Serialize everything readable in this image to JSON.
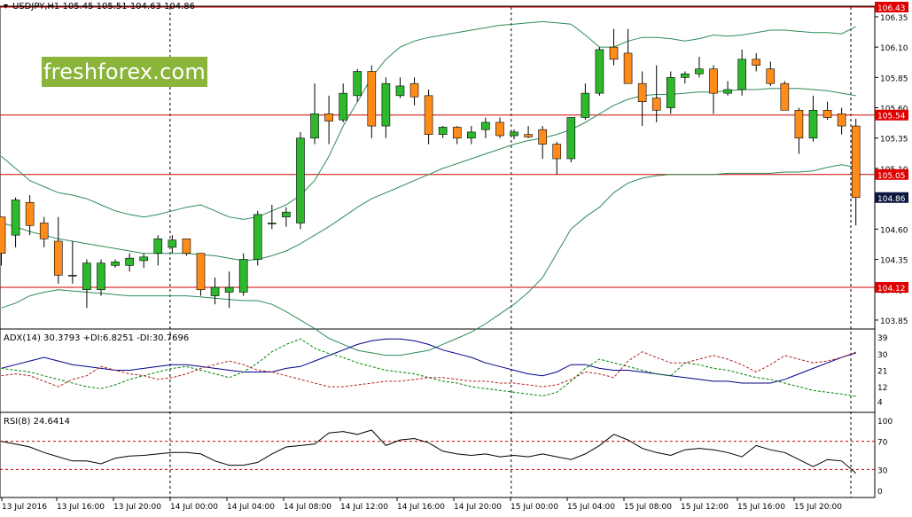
{
  "chart_data": [
    {
      "type": "candlestick",
      "title": "USDJPY,H1  105.45 105.51 104.63 104.86",
      "ylim": [
        103.75,
        106.45
      ],
      "y_ticks": [
        "106.35",
        "106.10",
        "105.85",
        "105.60",
        "105.35",
        "105.10",
        "104.86",
        "104.60",
        "104.35",
        "104.10",
        "103.85"
      ],
      "x_labels": [
        "13 Jul 2016",
        "13 Jul 16:00",
        "13 Jul 20:00",
        "14 Jul 00:00",
        "14 Jul 04:00",
        "14 Jul 08:00",
        "14 Jul 12:00",
        "14 Jul 16:00",
        "14 Jul 20:00",
        "15 Jul 00:00",
        "15 Jul 04:00",
        "15 Jul 08:00",
        "15 Jul 12:00",
        "15 Jul 16:00",
        "15 Jul 20:00"
      ],
      "day_separators": [
        "14 Jul 00:00",
        "15 Jul 00:00"
      ],
      "horizontal_levels": [
        {
          "label": "106.43",
          "value": 106.43
        },
        {
          "label": "105.54",
          "value": 105.54
        },
        {
          "label": "105.05",
          "value": 105.05
        },
        {
          "label": "104.12",
          "value": 104.12
        }
      ],
      "current_price": {
        "label": "104.86",
        "value": 104.86
      },
      "candles": [
        [
          104.7,
          104.7,
          104.3,
          104.4
        ],
        [
          104.55,
          104.86,
          104.45,
          104.84
        ],
        [
          104.82,
          104.88,
          104.55,
          104.63
        ],
        [
          104.65,
          104.7,
          104.45,
          104.52
        ],
        [
          104.5,
          104.7,
          104.15,
          104.22
        ],
        [
          104.22,
          104.5,
          104.15,
          104.22
        ],
        [
          104.1,
          104.35,
          103.95,
          104.32
        ],
        [
          104.1,
          104.35,
          104.05,
          104.32
        ],
        [
          104.3,
          104.35,
          104.28,
          104.33
        ],
        [
          104.3,
          104.4,
          104.25,
          104.36
        ],
        [
          104.34,
          104.4,
          104.28,
          104.37
        ],
        [
          104.4,
          104.55,
          104.3,
          104.52
        ],
        [
          104.45,
          104.55,
          104.4,
          104.51
        ],
        [
          104.52,
          104.52,
          104.38,
          104.4
        ],
        [
          104.4,
          104.4,
          104.05,
          104.1
        ],
        [
          104.05,
          104.2,
          103.98,
          104.12
        ],
        [
          104.08,
          104.25,
          103.95,
          104.12
        ],
        [
          104.08,
          104.4,
          104.05,
          104.35
        ],
        [
          104.35,
          104.75,
          104.3,
          104.72
        ],
        [
          104.65,
          104.8,
          104.6,
          104.65
        ],
        [
          104.7,
          104.78,
          104.62,
          104.74
        ],
        [
          104.65,
          105.4,
          104.6,
          105.35
        ],
        [
          105.35,
          105.8,
          105.3,
          105.55
        ],
        [
          105.55,
          105.7,
          105.3,
          105.49
        ],
        [
          105.5,
          105.8,
          105.48,
          105.72
        ],
        [
          105.7,
          105.92,
          105.65,
          105.9
        ],
        [
          105.9,
          105.95,
          105.35,
          105.45
        ],
        [
          105.45,
          105.85,
          105.35,
          105.8
        ],
        [
          105.7,
          105.85,
          105.68,
          105.78
        ],
        [
          105.8,
          105.85,
          105.62,
          105.69
        ],
        [
          105.7,
          105.75,
          105.3,
          105.38
        ],
        [
          105.38,
          105.45,
          105.35,
          105.44
        ],
        [
          105.44,
          105.45,
          105.3,
          105.35
        ],
        [
          105.35,
          105.45,
          105.3,
          105.4
        ],
        [
          105.42,
          105.52,
          105.35,
          105.48
        ],
        [
          105.48,
          105.52,
          105.35,
          105.37
        ],
        [
          105.37,
          105.42,
          105.34,
          105.4
        ],
        [
          105.38,
          105.45,
          105.35,
          105.36
        ],
        [
          105.42,
          105.45,
          105.18,
          105.3
        ],
        [
          105.3,
          105.32,
          105.05,
          105.18
        ],
        [
          105.18,
          105.52,
          105.15,
          105.52
        ],
        [
          105.52,
          105.8,
          105.5,
          105.72
        ],
        [
          105.72,
          106.1,
          105.7,
          106.08
        ],
        [
          106.1,
          106.25,
          105.95,
          106.0
        ],
        [
          106.05,
          106.25,
          105.8,
          105.8
        ],
        [
          105.8,
          105.9,
          105.45,
          105.65
        ],
        [
          105.68,
          105.95,
          105.48,
          105.58
        ],
        [
          105.6,
          105.9,
          105.55,
          105.85
        ],
        [
          105.85,
          105.9,
          105.8,
          105.88
        ],
        [
          105.88,
          106.02,
          105.85,
          105.92
        ],
        [
          105.92,
          105.95,
          105.55,
          105.72
        ],
        [
          105.72,
          105.82,
          105.7,
          105.75
        ],
        [
          105.75,
          106.08,
          105.7,
          106.0
        ],
        [
          106.0,
          106.05,
          105.9,
          105.95
        ],
        [
          105.92,
          105.98,
          105.78,
          105.8
        ],
        [
          105.8,
          105.82,
          105.58,
          105.58
        ],
        [
          105.58,
          105.6,
          105.22,
          105.35
        ],
        [
          105.35,
          105.7,
          105.32,
          105.58
        ],
        [
          105.58,
          105.65,
          105.5,
          105.52
        ],
        [
          105.55,
          105.6,
          105.38,
          105.45
        ],
        [
          105.45,
          105.51,
          104.63,
          104.86
        ]
      ],
      "bollinger": {
        "upper": [
          105.2,
          105.1,
          105.0,
          104.95,
          104.9,
          104.88,
          104.85,
          104.8,
          104.75,
          104.72,
          104.7,
          104.72,
          104.75,
          104.78,
          104.8,
          104.75,
          104.7,
          104.68,
          104.7,
          104.75,
          104.8,
          104.88,
          105.0,
          105.2,
          105.45,
          105.65,
          105.85,
          106.0,
          106.1,
          106.15,
          106.18,
          106.2,
          106.22,
          106.24,
          106.26,
          106.28,
          106.29,
          106.3,
          106.31,
          106.3,
          106.29,
          106.2,
          106.1,
          106.1,
          106.15,
          106.18,
          106.18,
          106.17,
          106.15,
          106.17,
          106.2,
          106.19,
          106.2,
          106.22,
          106.24,
          106.24,
          106.23,
          106.22,
          106.22,
          106.21,
          106.27
        ],
        "middle": [
          104.65,
          104.62,
          104.58,
          104.55,
          104.52,
          104.5,
          104.48,
          104.46,
          104.44,
          104.42,
          104.4,
          104.4,
          104.4,
          104.4,
          104.39,
          104.38,
          104.36,
          104.34,
          104.35,
          104.38,
          104.42,
          104.48,
          104.55,
          104.62,
          104.7,
          104.78,
          104.85,
          104.9,
          104.95,
          105.0,
          105.05,
          105.1,
          105.14,
          105.18,
          105.22,
          105.26,
          105.3,
          105.33,
          105.35,
          105.38,
          105.42,
          105.48,
          105.55,
          105.62,
          105.67,
          105.7,
          105.71,
          105.71,
          105.72,
          105.73,
          105.73,
          105.74,
          105.75,
          105.75,
          105.76,
          105.76,
          105.76,
          105.75,
          105.74,
          105.72,
          105.7
        ],
        "lower": [
          103.95,
          103.99,
          104.05,
          104.08,
          104.1,
          104.09,
          104.08,
          104.07,
          104.06,
          104.05,
          104.05,
          104.05,
          104.05,
          104.05,
          104.04,
          104.03,
          104.02,
          104.01,
          104.01,
          103.98,
          103.92,
          103.85,
          103.78,
          103.7,
          103.65,
          103.6,
          103.58,
          103.56,
          103.56,
          103.58,
          103.6,
          103.65,
          103.7,
          103.75,
          103.82,
          103.9,
          103.98,
          104.08,
          104.2,
          104.4,
          104.6,
          104.7,
          104.78,
          104.9,
          104.98,
          105.02,
          105.04,
          105.05,
          105.05,
          105.05,
          105.05,
          105.06,
          105.06,
          105.06,
          105.06,
          105.07,
          105.07,
          105.08,
          105.11,
          105.13,
          105.11
        ]
      }
    },
    {
      "type": "line",
      "title": "ADX(14) 30.3793 +DI:6.8251 -DI:30.7696",
      "ylim": [
        0,
        41
      ],
      "y_ticks": [
        "39",
        "30",
        "21",
        "12",
        "4"
      ],
      "series": [
        {
          "name": "ADX(14)",
          "color": "#00008b",
          "dash": "solid",
          "values": [
            22,
            24,
            26,
            28,
            26,
            24,
            23,
            22,
            21,
            21,
            22,
            23,
            24,
            24,
            23,
            22,
            21,
            20,
            20,
            20,
            22,
            23,
            26,
            29,
            32,
            35,
            37,
            38,
            38,
            37,
            35,
            32,
            30,
            28,
            25,
            23,
            21,
            19,
            18,
            20,
            24,
            24,
            22,
            21,
            21,
            20,
            19,
            18,
            17,
            16,
            15,
            15,
            14,
            14,
            14,
            16,
            19,
            22,
            25,
            28,
            30.4
          ]
        },
        {
          "name": "+DI",
          "color": "#008000",
          "dash": "dash",
          "values": [
            22,
            21,
            20,
            18,
            16,
            14,
            12,
            11,
            13,
            16,
            18,
            20,
            22,
            23,
            21,
            19,
            17,
            20,
            25,
            31,
            35,
            38,
            33,
            30,
            28,
            25,
            23,
            21,
            20,
            19,
            17,
            15,
            14,
            12,
            11,
            10,
            9,
            8,
            7,
            9,
            15,
            22,
            27,
            25,
            23,
            21,
            19,
            18,
            25,
            24,
            22,
            21,
            19,
            17,
            16,
            14,
            12,
            10,
            9,
            8,
            6.8
          ]
        },
        {
          "name": "-DI",
          "color": "#b22222",
          "dash": "dash",
          "values": [
            18,
            19,
            18,
            15,
            12,
            16,
            18,
            23,
            21,
            19,
            18,
            16,
            17,
            19,
            22,
            24,
            26,
            24,
            21,
            20,
            18,
            16,
            14,
            12,
            12,
            13,
            14,
            15,
            15,
            16,
            17,
            17,
            16,
            15,
            15,
            14,
            14,
            13,
            12,
            13,
            16,
            20,
            19,
            17,
            26,
            31,
            28,
            25,
            25,
            27,
            29,
            27,
            24,
            20,
            24,
            29,
            27,
            25,
            26,
            28,
            30.8
          ]
        }
      ]
    },
    {
      "type": "line",
      "title": "RSI(8) 24.6414",
      "ylim": [
        -5,
        105
      ],
      "y_ticks": [
        "100",
        "70",
        "30",
        "0"
      ],
      "levels": [
        70,
        30
      ],
      "series": [
        {
          "name": "RSI(8)",
          "color": "#000000",
          "dash": "solid",
          "values": [
            70,
            66,
            62,
            54,
            48,
            42,
            42,
            38,
            46,
            49,
            50,
            52,
            54,
            54,
            52,
            42,
            36,
            36,
            40,
            52,
            62,
            64,
            66,
            82,
            84,
            80,
            86,
            64,
            72,
            74,
            68,
            56,
            52,
            50,
            52,
            48,
            50,
            48,
            52,
            48,
            44,
            52,
            64,
            80,
            72,
            60,
            54,
            50,
            58,
            60,
            58,
            54,
            48,
            64,
            58,
            54,
            44,
            34,
            44,
            42,
            24.6
          ]
        }
      ]
    }
  ],
  "logo_text": "freshforex.com"
}
